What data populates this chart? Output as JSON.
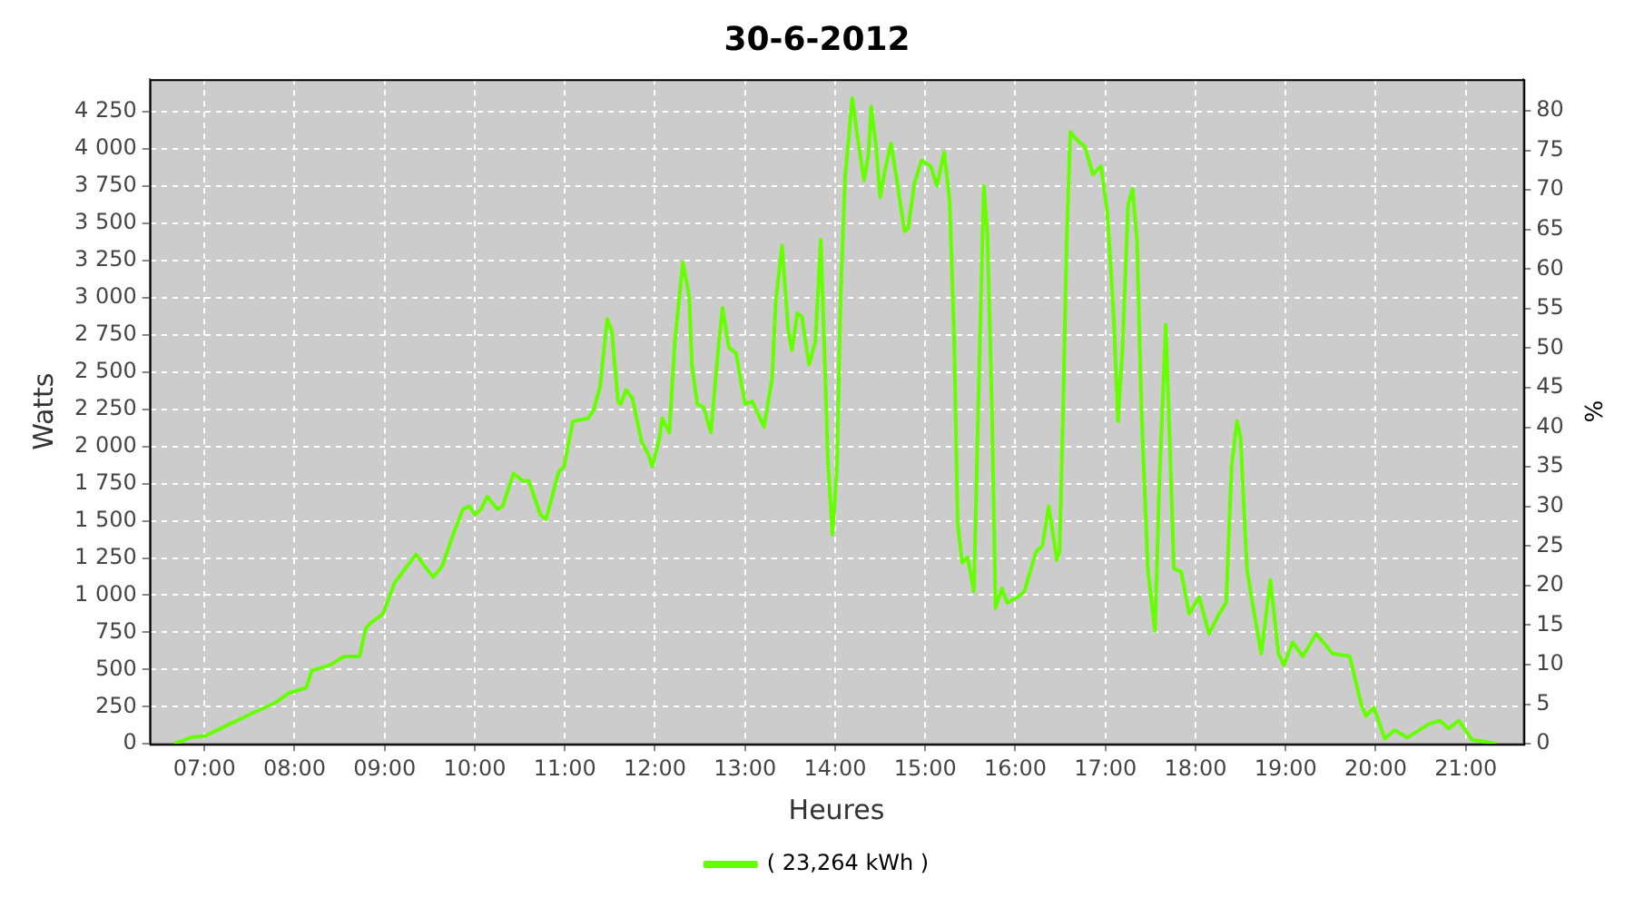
{
  "chart_data": {
    "type": "line",
    "title": "30-6-2012",
    "xlabel": "Heures",
    "ylabel": "Watts",
    "y2label": "%",
    "legend": "bottom",
    "grid": true,
    "marker": "none",
    "x": [
      6.66,
      6.87,
      7.01,
      7.27,
      7.4,
      7.53,
      7.67,
      7.8,
      7.93,
      8.13,
      8.19,
      8.39,
      8.55,
      8.72,
      8.79,
      8.85,
      8.98,
      9.11,
      9.25,
      9.35,
      9.44,
      9.54,
      9.64,
      9.77,
      9.87,
      9.94,
      10.0,
      10.07,
      10.14,
      10.25,
      10.31,
      10.43,
      10.53,
      10.6,
      10.73,
      10.79,
      10.93,
      10.99,
      11.09,
      11.26,
      11.32,
      11.39,
      11.47,
      11.52,
      11.59,
      11.62,
      11.68,
      11.75,
      11.85,
      11.93,
      11.97,
      12.05,
      12.08,
      12.16,
      12.22,
      12.31,
      12.38,
      12.41,
      12.47,
      12.54,
      12.62,
      12.71,
      12.75,
      12.82,
      12.9,
      13.0,
      13.08,
      13.21,
      13.3,
      13.34,
      13.41,
      13.48,
      13.52,
      13.58,
      13.63,
      13.71,
      13.78,
      13.84,
      13.89,
      13.92,
      13.97,
      14.02,
      14.06,
      14.11,
      14.19,
      14.25,
      14.32,
      14.37,
      14.4,
      14.45,
      14.5,
      14.55,
      14.62,
      14.68,
      14.77,
      14.81,
      14.88,
      14.96,
      15.06,
      15.13,
      15.21,
      15.27,
      15.32,
      15.36,
      15.41,
      15.47,
      15.54,
      15.58,
      15.65,
      15.69,
      15.74,
      15.78,
      15.85,
      15.91,
      16.03,
      16.1,
      16.23,
      16.3,
      16.37,
      16.41,
      16.46,
      16.49,
      16.53,
      16.57,
      16.61,
      16.69,
      16.77,
      16.86,
      16.95,
      17.02,
      17.09,
      17.14,
      17.19,
      17.25,
      17.3,
      17.35,
      17.4,
      17.47,
      17.55,
      17.6,
      17.67,
      17.71,
      17.76,
      17.84,
      17.93,
      18.04,
      18.15,
      18.26,
      18.34,
      18.4,
      18.46,
      18.5,
      18.57,
      18.63,
      18.73,
      18.83,
      18.92,
      18.98,
      19.08,
      19.19,
      19.34,
      19.52,
      19.71,
      19.84,
      19.89,
      19.98,
      20.1,
      20.21,
      20.35,
      20.58,
      20.71,
      20.81,
      20.92,
      21.07,
      21.2,
      21.34
    ],
    "series": [
      {
        "name": "( 23,264 kWh )",
        "color": "#66ff00",
        "values": [
          0,
          46,
          53,
          130,
          168,
          206,
          244,
          282,
          340,
          377,
          492,
          530,
          587,
          587,
          778,
          816,
          873,
          1083,
          1197,
          1274,
          1197,
          1121,
          1197,
          1426,
          1579,
          1598,
          1540,
          1579,
          1662,
          1579,
          1598,
          1819,
          1769,
          1769,
          1540,
          1510,
          1827,
          1865,
          2170,
          2189,
          2246,
          2399,
          2856,
          2780,
          2303,
          2284,
          2380,
          2323,
          2036,
          1941,
          1865,
          2056,
          2189,
          2094,
          2704,
          3238,
          3009,
          2551,
          2284,
          2265,
          2094,
          2704,
          2933,
          2666,
          2628,
          2284,
          2303,
          2132,
          2456,
          2971,
          3352,
          2780,
          2647,
          2894,
          2875,
          2551,
          2704,
          3390,
          2475,
          1903,
          1407,
          1865,
          3009,
          3809,
          4343,
          4076,
          3790,
          3962,
          4286,
          4038,
          3676,
          3848,
          4038,
          3809,
          3447,
          3466,
          3771,
          3924,
          3886,
          3752,
          3980,
          3657,
          2742,
          1483,
          1217,
          1255,
          1026,
          2056,
          3752,
          3428,
          2246,
          912,
          1045,
          950,
          988,
          1026,
          1293,
          1331,
          1598,
          1446,
          1236,
          1293,
          2246,
          3390,
          4115,
          4057,
          4019,
          3829,
          3886,
          3581,
          2894,
          2170,
          2666,
          3619,
          3733,
          3390,
          2246,
          1178,
          759,
          1789,
          2818,
          2094,
          1178,
          1159,
          874,
          988,
          740,
          874,
          950,
          1865,
          2170,
          2056,
          1178,
          950,
          607,
          1102,
          607,
          530,
          683,
          588,
          740,
          607,
          589,
          263,
          187,
          244,
          35,
          92,
          42,
          130,
          157,
          103,
          157,
          27,
          16,
          0
        ]
      }
    ],
    "xlim": [
      6.39,
      21.64
    ],
    "xticks": [
      {
        "value": 7,
        "label": "07:00"
      },
      {
        "value": 8,
        "label": "08:00"
      },
      {
        "value": 9,
        "label": "09:00"
      },
      {
        "value": 10,
        "label": "10:00"
      },
      {
        "value": 11,
        "label": "11:00"
      },
      {
        "value": 12,
        "label": "12:00"
      },
      {
        "value": 13,
        "label": "13:00"
      },
      {
        "value": 14,
        "label": "14:00"
      },
      {
        "value": 15,
        "label": "15:00"
      },
      {
        "value": 16,
        "label": "16:00"
      },
      {
        "value": 17,
        "label": "17:00"
      },
      {
        "value": 18,
        "label": "18:00"
      },
      {
        "value": 19,
        "label": "19:00"
      },
      {
        "value": 20,
        "label": "20:00"
      },
      {
        "value": 21,
        "label": "21:00"
      }
    ],
    "ylim": [
      0,
      4470
    ],
    "yticks": [
      0,
      250,
      500,
      750,
      {
        "value": 1000,
        "label": "1 000"
      },
      {
        "value": 1250,
        "label": "1 250"
      },
      {
        "value": 1500,
        "label": "1 500"
      },
      {
        "value": 1750,
        "label": "1 750"
      },
      {
        "value": 2000,
        "label": "2 000"
      },
      {
        "value": 2250,
        "label": "2 250"
      },
      {
        "value": 2500,
        "label": "2 500"
      },
      {
        "value": 2750,
        "label": "2 750"
      },
      {
        "value": 3000,
        "label": "3 000"
      },
      {
        "value": 3250,
        "label": "3 250"
      },
      {
        "value": 3500,
        "label": "3 500"
      },
      {
        "value": 3750,
        "label": "3 750"
      },
      {
        "value": 4000,
        "label": "4 000"
      },
      {
        "value": 4250,
        "label": "4 250"
      }
    ],
    "y2lim": [
      0,
      84
    ],
    "y2ticks": [
      0,
      5,
      10,
      15,
      20,
      25,
      30,
      35,
      40,
      45,
      50,
      55,
      60,
      65,
      70,
      75,
      80
    ]
  }
}
